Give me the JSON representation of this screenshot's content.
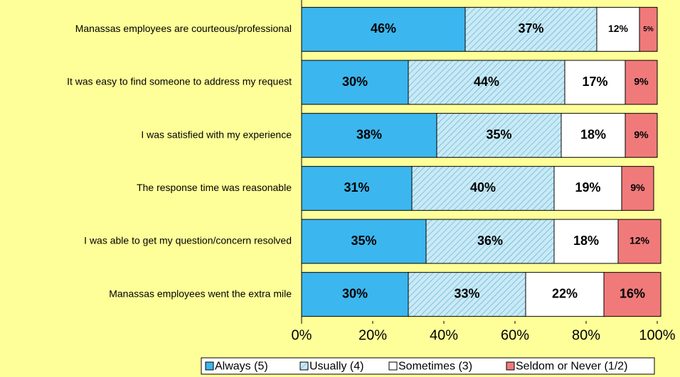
{
  "chart_data": {
    "type": "stacked-barh",
    "categories": [
      "Manassas employees are courteous/professional",
      "It was easy to find someone to address my request",
      "I was satisfied with my experience",
      "The response time was reasonable",
      "I was able to get my question/concern resolved",
      "Manassas employees went the extra mile"
    ],
    "series": [
      {
        "name": "Always (5)",
        "color": "#3cb6ee",
        "values": [
          46,
          30,
          38,
          31,
          35,
          30
        ],
        "value_labels": [
          "46%",
          "30%",
          "38%",
          "31%",
          "35%",
          "30%"
        ]
      },
      {
        "name": "Usually (4)",
        "color": "#c8eaf6",
        "hatch": true,
        "values": [
          37,
          44,
          35,
          40,
          36,
          33
        ],
        "value_labels": [
          "37%",
          "44%",
          "35%",
          "40%",
          "36%",
          "33%"
        ]
      },
      {
        "name": "Sometimes (3)",
        "color": "#ffffff",
        "values": [
          12,
          17,
          18,
          19,
          18,
          22
        ],
        "value_labels": [
          "12%",
          "17%",
          "18%",
          "19%",
          "18%",
          "22%"
        ]
      },
      {
        "name": "Seldom or Never (1/2)",
        "color": "#f07a7a",
        "values": [
          5,
          9,
          9,
          9,
          12,
          16
        ],
        "value_labels": [
          "5%",
          "9%",
          "9%",
          "9%",
          "12%",
          "16%"
        ]
      }
    ],
    "xlim": [
      0,
      100
    ],
    "xticks": [
      {
        "value": 0,
        "label": "0%"
      },
      {
        "value": 20,
        "label": "20%"
      },
      {
        "value": 40,
        "label": "40%"
      },
      {
        "value": 60,
        "label": "60%"
      },
      {
        "value": 80,
        "label": "80%"
      },
      {
        "value": 100,
        "label": "100%"
      }
    ],
    "legend": "bottom"
  }
}
